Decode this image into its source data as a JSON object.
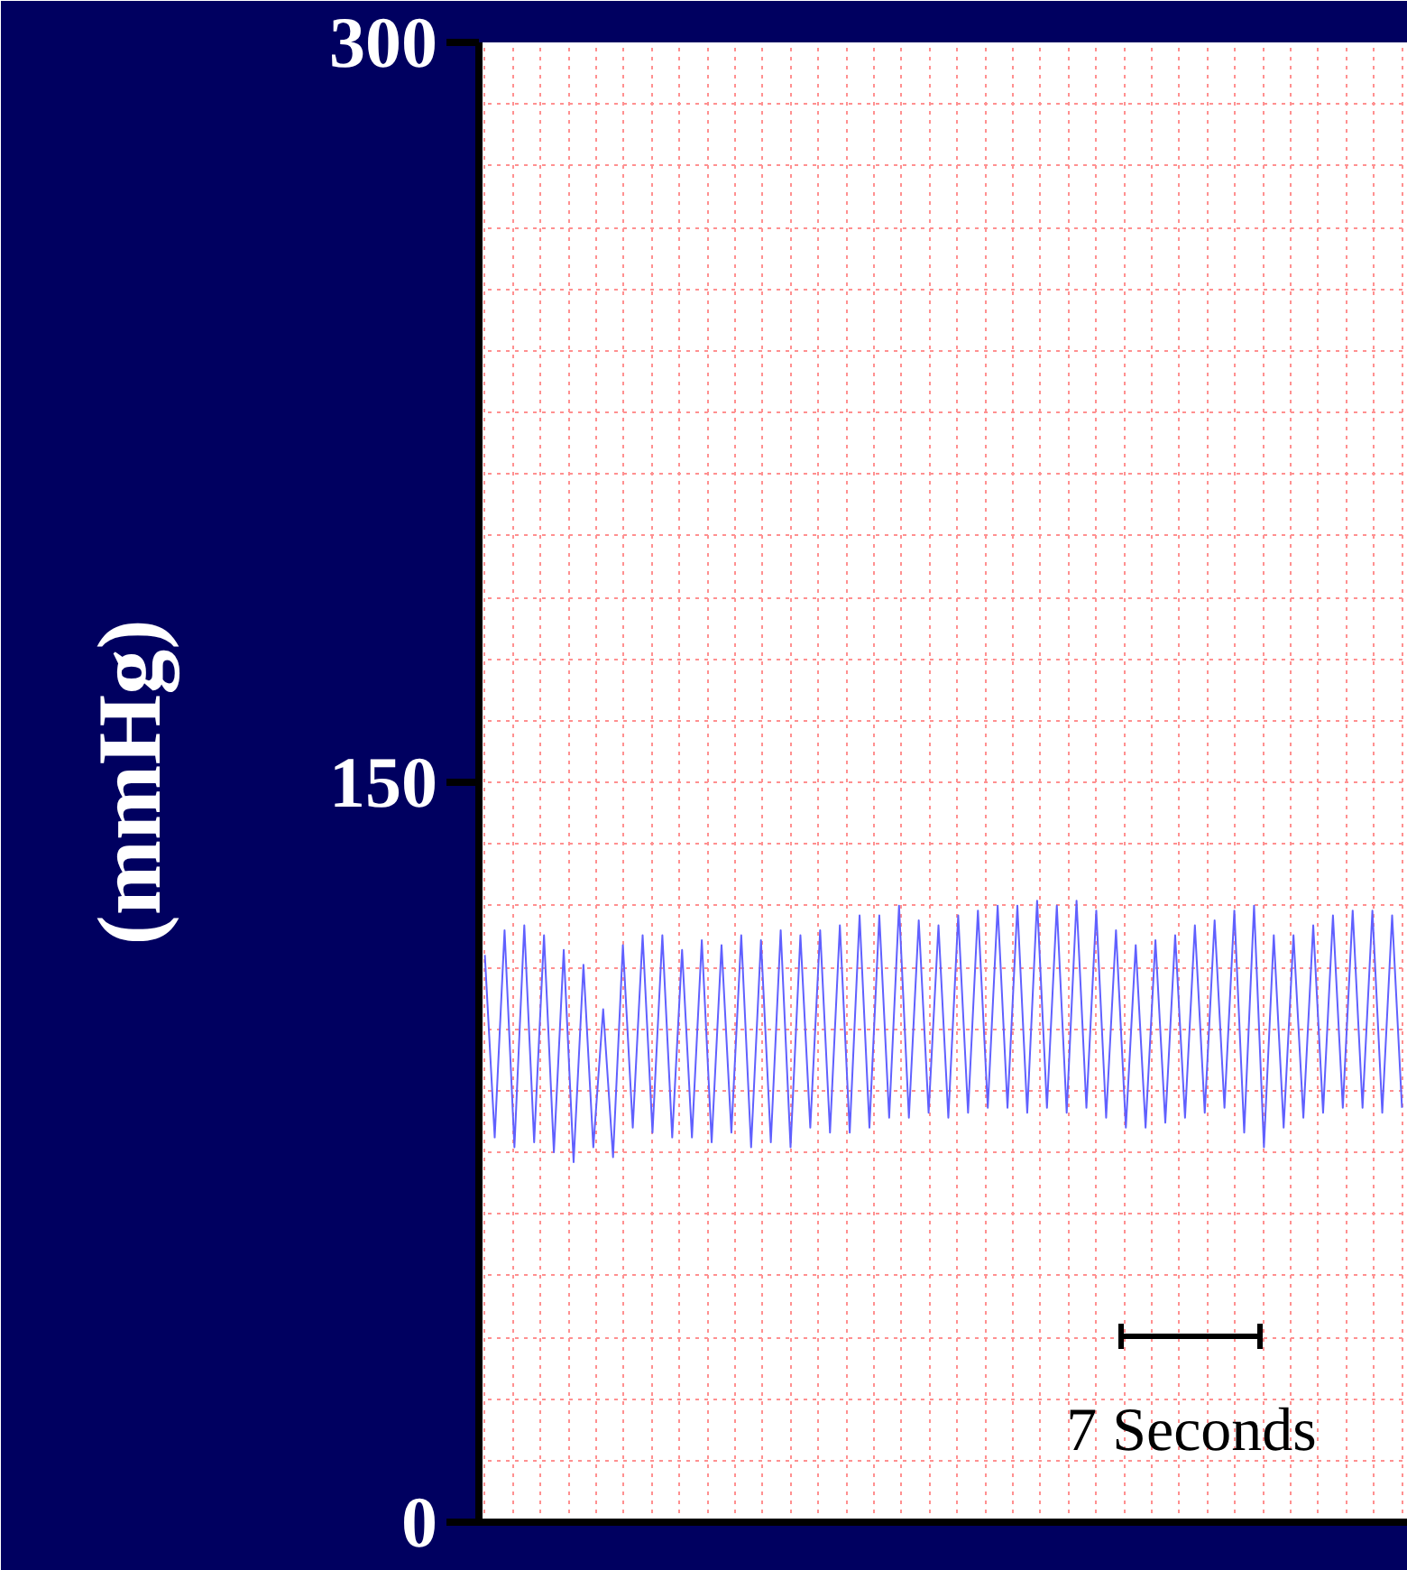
{
  "chart_data": {
    "type": "line",
    "ylabel": "(mmHg)",
    "ylim": [
      0,
      300
    ],
    "yticks": [
      0,
      150,
      300
    ],
    "tick_labels": "y",
    "grid": true,
    "annotations": [
      "7 Seconds"
    ],
    "categories": [
      null,
      null,
      null,
      null,
      null,
      null,
      null,
      null,
      null,
      null,
      null,
      null,
      null,
      null,
      null,
      null,
      null,
      null,
      null,
      null,
      null,
      null,
      null,
      null,
      null,
      null,
      null,
      null,
      null,
      null,
      null,
      null,
      null,
      null,
      null,
      null,
      null,
      null,
      null,
      null,
      null,
      null,
      null,
      null,
      null,
      null,
      null,
      null,
      null,
      null,
      null,
      null,
      null,
      null,
      null,
      null,
      null,
      null,
      null,
      null,
      null,
      null,
      null,
      null,
      null,
      null,
      null,
      null,
      null,
      null,
      null,
      null,
      null,
      null,
      null,
      null,
      null,
      null,
      null,
      null,
      null,
      null,
      null,
      null,
      null,
      null,
      null,
      null,
      null,
      null,
      null,
      null,
      null,
      null
    ],
    "series": [
      {
        "color": "#6060ff",
        "values": [
          115,
          78,
          120,
          76,
          121,
          77,
          119,
          75,
          116,
          73,
          113,
          76,
          104,
          74,
          117,
          80,
          119,
          79,
          119,
          78,
          116,
          78,
          118,
          77,
          117,
          79,
          119,
          76,
          118,
          77,
          120,
          76,
          119,
          80,
          120,
          79,
          121,
          79,
          123,
          80,
          123,
          82,
          125,
          82,
          122,
          83,
          121,
          82,
          123,
          83,
          124,
          84,
          125,
          84,
          125,
          83,
          126,
          84,
          125,
          83,
          126,
          84,
          124,
          82,
          120,
          80,
          117,
          80,
          118,
          81,
          119,
          82,
          121,
          83,
          122,
          84,
          124,
          79,
          125,
          76,
          119,
          80,
          119,
          82,
          121,
          83,
          123,
          84,
          124,
          84,
          124,
          83,
          123,
          84
        ]
      }
    ]
  }
}
